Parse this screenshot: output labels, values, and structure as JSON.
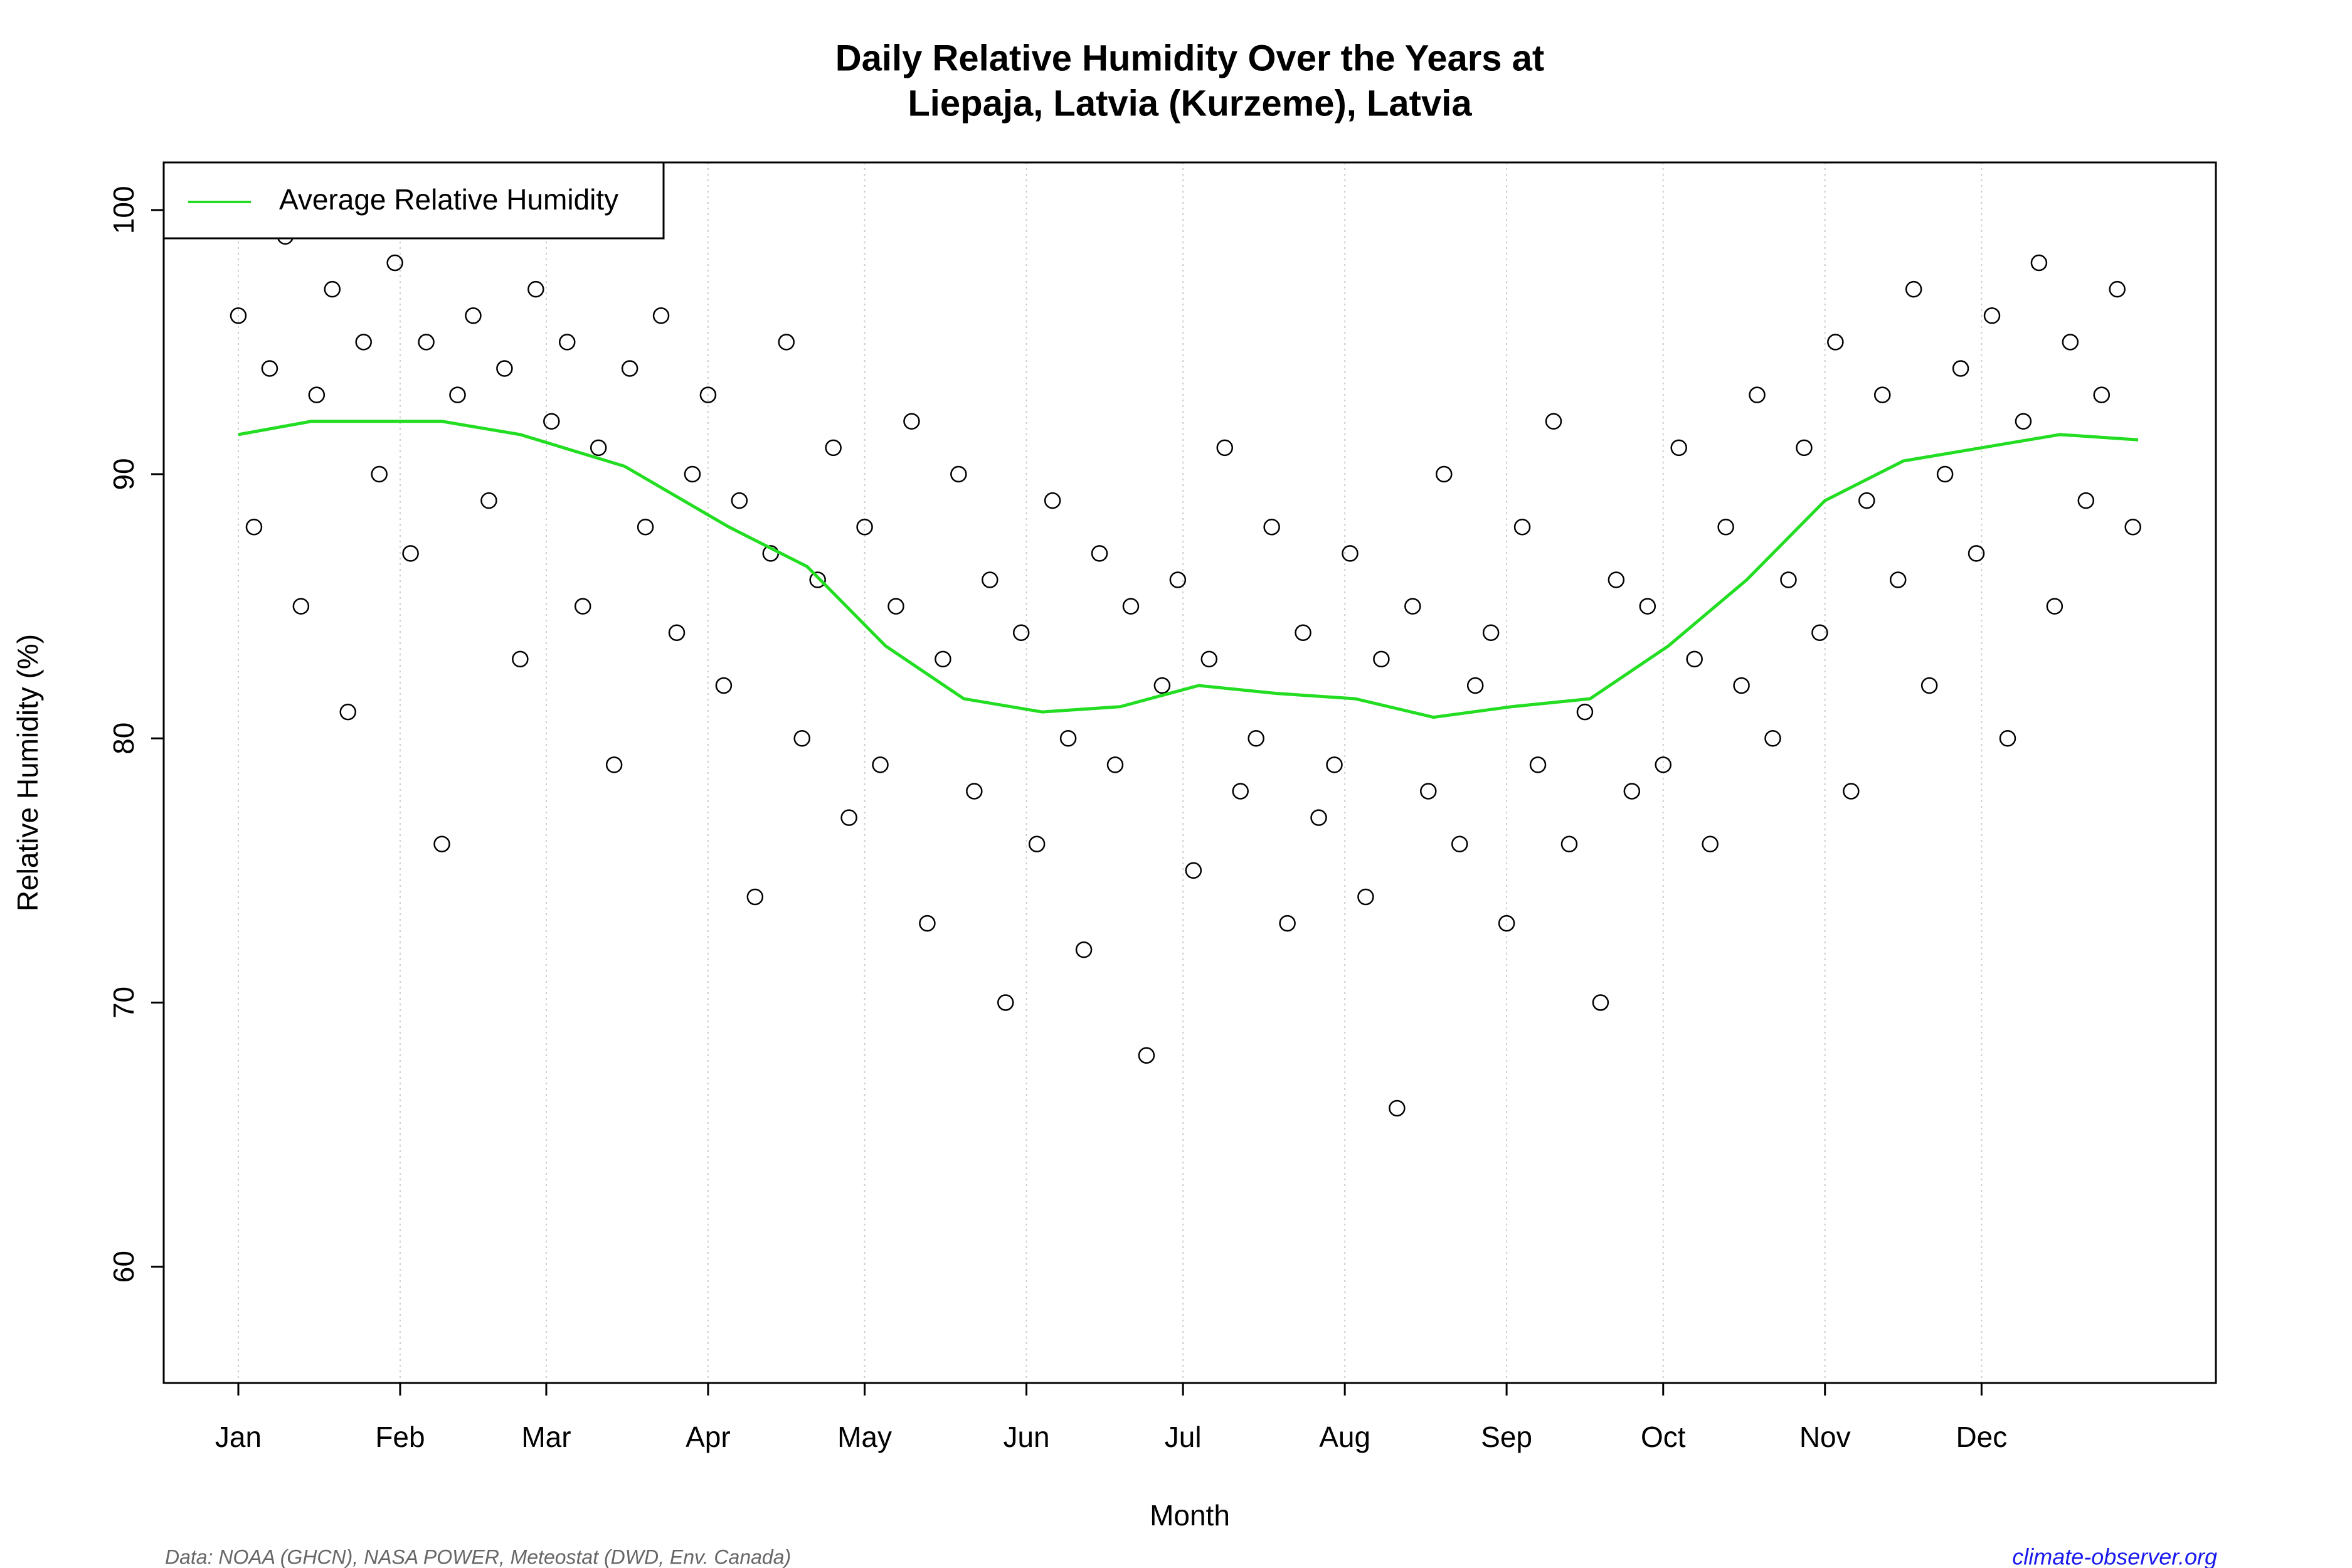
{
  "chart_data": {
    "type": "scatter",
    "title": "Daily Relative Humidity Over the Years at",
    "subtitle": "Liepaja, Latvia (Kurzeme), Latvia",
    "x_label": "Month",
    "y_label": "Relative Humidity  (%)",
    "source": "Data: NOAA (GHCN), NASA POWER, Meteostat (DWD, Env. Canada)",
    "credit": "climate-observer.org",
    "xlim": [
      -13.3,
      379.9
    ],
    "ylim": [
      55.6,
      101.8
    ],
    "xticks": [
      {
        "value": 1,
        "label": "Jan"
      },
      {
        "value": 32,
        "label": "Feb"
      },
      {
        "value": 60,
        "label": "Mar"
      },
      {
        "value": 91,
        "label": "Apr"
      },
      {
        "value": 121,
        "label": "May"
      },
      {
        "value": 152,
        "label": "Jun"
      },
      {
        "value": 182,
        "label": "Jul"
      },
      {
        "value": 213,
        "label": "Aug"
      },
      {
        "value": 244,
        "label": "Sep"
      },
      {
        "value": 274,
        "label": "Oct"
      },
      {
        "value": 305,
        "label": "Nov"
      },
      {
        "value": 335,
        "label": "Dec"
      }
    ],
    "yticks": [
      60,
      70,
      80,
      90,
      100
    ],
    "grid": true,
    "legend_position": "top-left",
    "points": {
      "color": "#000000",
      "x": [
        1,
        4,
        7,
        10,
        13,
        16,
        19,
        22,
        25,
        28,
        31,
        34,
        37,
        40,
        43,
        46,
        49,
        52,
        55,
        58,
        61,
        64,
        67,
        70,
        73,
        76,
        79,
        82,
        85,
        88,
        91,
        94,
        97,
        100,
        103,
        106,
        109,
        112,
        115,
        118,
        121,
        124,
        127,
        130,
        133,
        136,
        139,
        142,
        145,
        148,
        151,
        154,
        157,
        160,
        163,
        166,
        169,
        172,
        175,
        178,
        181,
        184,
        187,
        190,
        193,
        196,
        199,
        202,
        205,
        208,
        211,
        214,
        217,
        220,
        223,
        226,
        229,
        232,
        235,
        238,
        241,
        244,
        247,
        250,
        253,
        256,
        259,
        262,
        265,
        268,
        271,
        274,
        277,
        280,
        283,
        286,
        289,
        292,
        295,
        298,
        301,
        304,
        307,
        310,
        313,
        316,
        319,
        322,
        325,
        328,
        331,
        334,
        337,
        340,
        343,
        346,
        349,
        352,
        355,
        358,
        361,
        364
      ],
      "y": [
        96,
        88,
        94,
        99,
        85,
        93,
        97,
        81,
        95,
        90,
        98,
        87,
        95,
        76,
        93,
        96,
        89,
        94,
        83,
        97,
        92,
        95,
        85,
        91,
        79,
        94,
        88,
        96,
        84,
        90,
        93,
        82,
        89,
        74,
        87,
        95,
        80,
        86,
        91,
        77,
        88,
        79,
        85,
        92,
        73,
        83,
        90,
        78,
        86,
        70,
        84,
        76,
        89,
        80,
        72,
        87,
        79,
        85,
        68,
        82,
        86,
        75,
        83,
        91,
        78,
        80,
        88,
        73,
        84,
        77,
        79,
        87,
        74,
        83,
        66,
        85,
        78,
        90,
        76,
        82,
        84,
        73,
        88,
        79,
        92,
        76,
        81,
        70,
        86,
        78,
        85,
        79,
        91,
        83,
        76,
        88,
        82,
        93,
        80,
        86,
        91,
        84,
        95,
        78,
        89,
        93,
        86,
        97,
        82,
        90,
        94,
        87,
        96,
        80,
        92,
        98,
        85,
        95,
        89,
        93,
        97,
        88
      ]
    },
    "series": [
      {
        "name": "Average Relative Humidity",
        "color": "#22dd22",
        "x": [
          1,
          15,
          40,
          55,
          75,
          95,
          110,
          125,
          140,
          155,
          170,
          185,
          200,
          215,
          230,
          245,
          260,
          275,
          290,
          305,
          320,
          335,
          350,
          365
        ],
        "values": [
          91.5,
          92,
          92,
          91.5,
          90.3,
          88,
          86.5,
          83.5,
          81.5,
          81,
          81.2,
          82,
          81.7,
          81.5,
          80.8,
          81.2,
          81.5,
          83.5,
          86,
          89,
          90.5,
          91,
          91.5,
          91.3
        ]
      }
    ]
  }
}
